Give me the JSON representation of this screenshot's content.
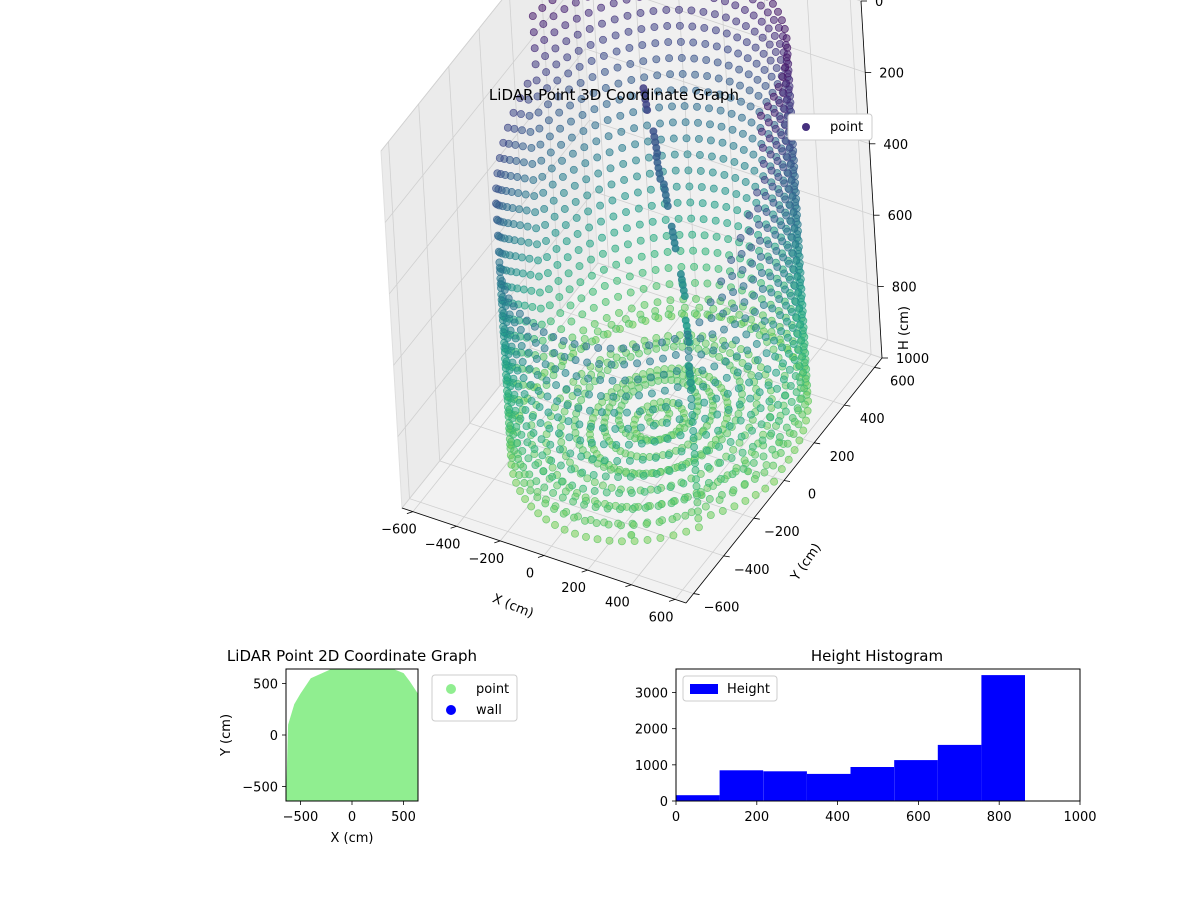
{
  "chart_data": [
    {
      "type": "scatter",
      "projection": "3d",
      "title": "LiDAR Point 3D Coordinate Graph",
      "xlabel": "X (cm)",
      "ylabel": "Y (cm)",
      "zlabel": "H (cm)",
      "xlim": [
        -650,
        650
      ],
      "ylim": [
        -650,
        650
      ],
      "zlim": [
        1000,
        0
      ],
      "z_inverted": true,
      "xticks": [
        -600,
        -400,
        -200,
        0,
        200,
        400,
        600
      ],
      "yticks": [
        -600,
        -400,
        -200,
        0,
        200,
        400,
        600
      ],
      "zticks": [
        0,
        200,
        400,
        600,
        800,
        1000
      ],
      "legend": {
        "entries": [
          "point"
        ],
        "placement": "top-right"
      },
      "colormap": "viridis",
      "color_by": "H",
      "series": [
        {
          "name": "point",
          "shape": "partial cylindrical wall of points, radius ~600 cm, open on the front-left, heights 0-1000 cm",
          "x": [
            -600,
            -520,
            -420,
            -300,
            -150,
            0,
            150,
            300,
            420,
            520,
            600,
            620,
            600,
            520,
            420,
            300,
            150,
            0,
            -150
          ],
          "y": [
            0,
            -300,
            -450,
            -540,
            -600,
            -620,
            -600,
            -540,
            -450,
            -300,
            0,
            150,
            300,
            450,
            540,
            600,
            620,
            620,
            600
          ],
          "h": [
            150,
            200,
            200,
            250,
            300,
            300,
            300,
            250,
            250,
            300,
            350,
            400,
            50,
            50,
            30,
            20,
            20,
            20,
            30
          ]
        },
        {
          "name": "point",
          "shape": "interior floor points near H 800-1000",
          "x": [
            -100,
            0,
            100,
            200,
            -200,
            50,
            150
          ],
          "y": [
            -100,
            0,
            100,
            -50,
            50,
            200,
            -200
          ],
          "h": [
            900,
            950,
            920,
            880,
            960,
            940,
            900
          ]
        },
        {
          "name": "point",
          "shape": "scattered interior object points",
          "x": [
            -50,
            0,
            30,
            80,
            120,
            180,
            220,
            250
          ],
          "y": [
            200,
            180,
            150,
            120,
            100,
            60,
            20,
            -20
          ],
          "h": [
            150,
            250,
            300,
            350,
            450,
            550,
            650,
            750
          ]
        }
      ]
    },
    {
      "type": "scatter",
      "title": "LiDAR Point 2D Coordinate Graph",
      "xlabel": "X (cm)",
      "ylabel": "Y (cm)",
      "xlim": [
        -640,
        640
      ],
      "ylim": [
        -640,
        640
      ],
      "xticks": [
        -500,
        0,
        500
      ],
      "yticks": [
        -500,
        0,
        500
      ],
      "legend": {
        "entries": [
          "point",
          "wall"
        ],
        "placement": "outside-right"
      },
      "colors": {
        "point": "#90ee90",
        "wall": "#0000ff"
      },
      "series": [
        {
          "name": "point",
          "shape": "dense filled region covering most of the square, rounded top corners",
          "boundary_x": [
            -640,
            -620,
            -560,
            -500,
            -400,
            -200,
            0,
            200,
            400,
            500,
            560,
            640,
            640,
            -640
          ],
          "boundary_y": [
            -640,
            100,
            300,
            400,
            550,
            640,
            640,
            640,
            640,
            600,
            520,
            400,
            -640,
            -640
          ]
        },
        {
          "name": "wall",
          "x": [],
          "y": []
        }
      ]
    },
    {
      "type": "bar",
      "subtype": "histogram",
      "title": "Height Histogram",
      "xlabel": "",
      "ylabel": "",
      "xlim": [
        0,
        1000
      ],
      "ylim": [
        0,
        3650
      ],
      "xticks": [
        0,
        200,
        400,
        600,
        800,
        1000
      ],
      "yticks": [
        0,
        1000,
        2000,
        3000
      ],
      "legend": {
        "entries": [
          "Height"
        ],
        "placement": "top-left"
      },
      "color": "#0000ff",
      "series": [
        {
          "name": "Height",
          "bin_edges": [
            0,
            108,
            216,
            324,
            432,
            540,
            648,
            756,
            864
          ],
          "values": [
            160,
            850,
            820,
            750,
            940,
            1130,
            1550,
            3480
          ]
        }
      ]
    }
  ]
}
